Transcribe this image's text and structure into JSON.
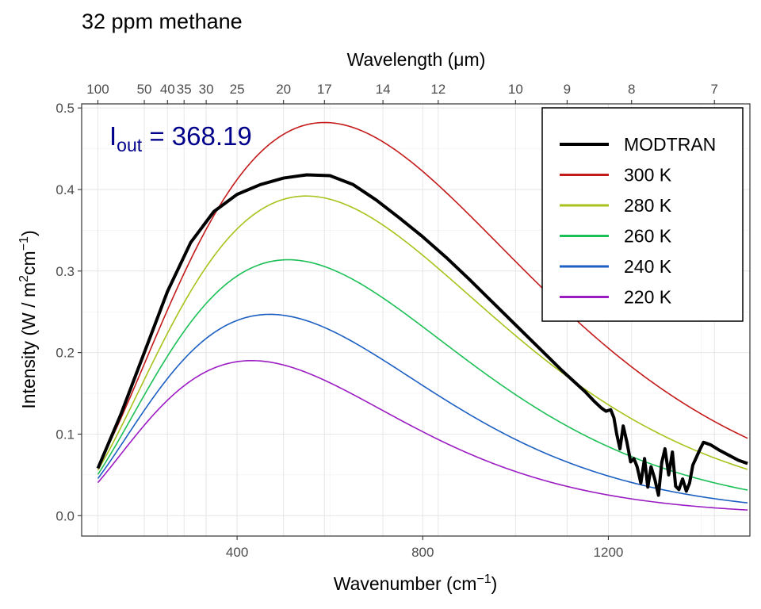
{
  "chart_data": {
    "type": "line",
    "title": "32 ppm methane",
    "xlabel": "Wavenumber (cm",
    "xlabel_sup": "−1",
    "xlabel_close": ")",
    "ylabel_pre": "Intensity (W / m",
    "ylabel_sup2": "2",
    "ylabel_mid": "cm",
    "ylabel_sup1": "−1",
    "ylabel_close": ")",
    "x2label": "Wavelength (μm)",
    "xlim": [
      65,
      1505
    ],
    "ylim": [
      -0.025,
      0.505
    ],
    "x_ticks": [
      400,
      800,
      1200
    ],
    "y_ticks": [
      0.0,
      0.1,
      0.2,
      0.3,
      0.4,
      0.5
    ],
    "x_tick_labels": [
      "400",
      "800",
      "1200"
    ],
    "y_tick_labels": [
      "0.0",
      "0.1",
      "0.2",
      "0.3",
      "0.4",
      "0.5"
    ],
    "x2_ticks": [
      100,
      50,
      40,
      35,
      30,
      25,
      20,
      17,
      14,
      12,
      10,
      9,
      8,
      7
    ],
    "x2_tick_labels": [
      "100",
      "50",
      "40",
      "35",
      "30",
      "25",
      "20",
      "17",
      "14",
      "12",
      "10",
      "9",
      "8",
      "7"
    ],
    "grid": true,
    "legend_position": "top-right",
    "annotation": {
      "base": "I",
      "sub": "out",
      "eq": " = ",
      "value": "368.19"
    },
    "planck_series": [
      {
        "name": "300 K",
        "temperature": 300,
        "color": "#c41a1a"
      },
      {
        "name": "280 K",
        "temperature": 280,
        "color": "#a9c21c"
      },
      {
        "name": "260 K",
        "temperature": 260,
        "color": "#1cc056"
      },
      {
        "name": "240 K",
        "temperature": 240,
        "color": "#1c5fc2"
      },
      {
        "name": "220 K",
        "temperature": 220,
        "color": "#9b1cc2"
      }
    ],
    "modtran": {
      "name": "MODTRAN",
      "color": "#000000",
      "x": [
        100,
        150,
        200,
        250,
        300,
        350,
        400,
        450,
        500,
        550,
        600,
        650,
        700,
        750,
        800,
        850,
        900,
        950,
        1000,
        1050,
        1100,
        1150,
        1170,
        1185,
        1195,
        1205,
        1212,
        1218,
        1225,
        1232,
        1240,
        1248,
        1255,
        1262,
        1270,
        1278,
        1285,
        1292,
        1300,
        1308,
        1315,
        1322,
        1330,
        1338,
        1345,
        1352,
        1360,
        1368,
        1375,
        1382,
        1390,
        1398,
        1405,
        1420,
        1440,
        1460,
        1480,
        1500
      ],
      "y": [
        0.058,
        0.125,
        0.2,
        0.275,
        0.335,
        0.373,
        0.394,
        0.406,
        0.414,
        0.418,
        0.417,
        0.406,
        0.387,
        0.365,
        0.342,
        0.317,
        0.29,
        0.262,
        0.234,
        0.206,
        0.178,
        0.152,
        0.14,
        0.132,
        0.128,
        0.13,
        0.12,
        0.1,
        0.082,
        0.11,
        0.09,
        0.066,
        0.07,
        0.06,
        0.04,
        0.07,
        0.035,
        0.06,
        0.045,
        0.025,
        0.065,
        0.082,
        0.05,
        0.078,
        0.036,
        0.032,
        0.045,
        0.03,
        0.04,
        0.062,
        0.072,
        0.082,
        0.09,
        0.087,
        0.08,
        0.074,
        0.068,
        0.064
      ]
    }
  }
}
